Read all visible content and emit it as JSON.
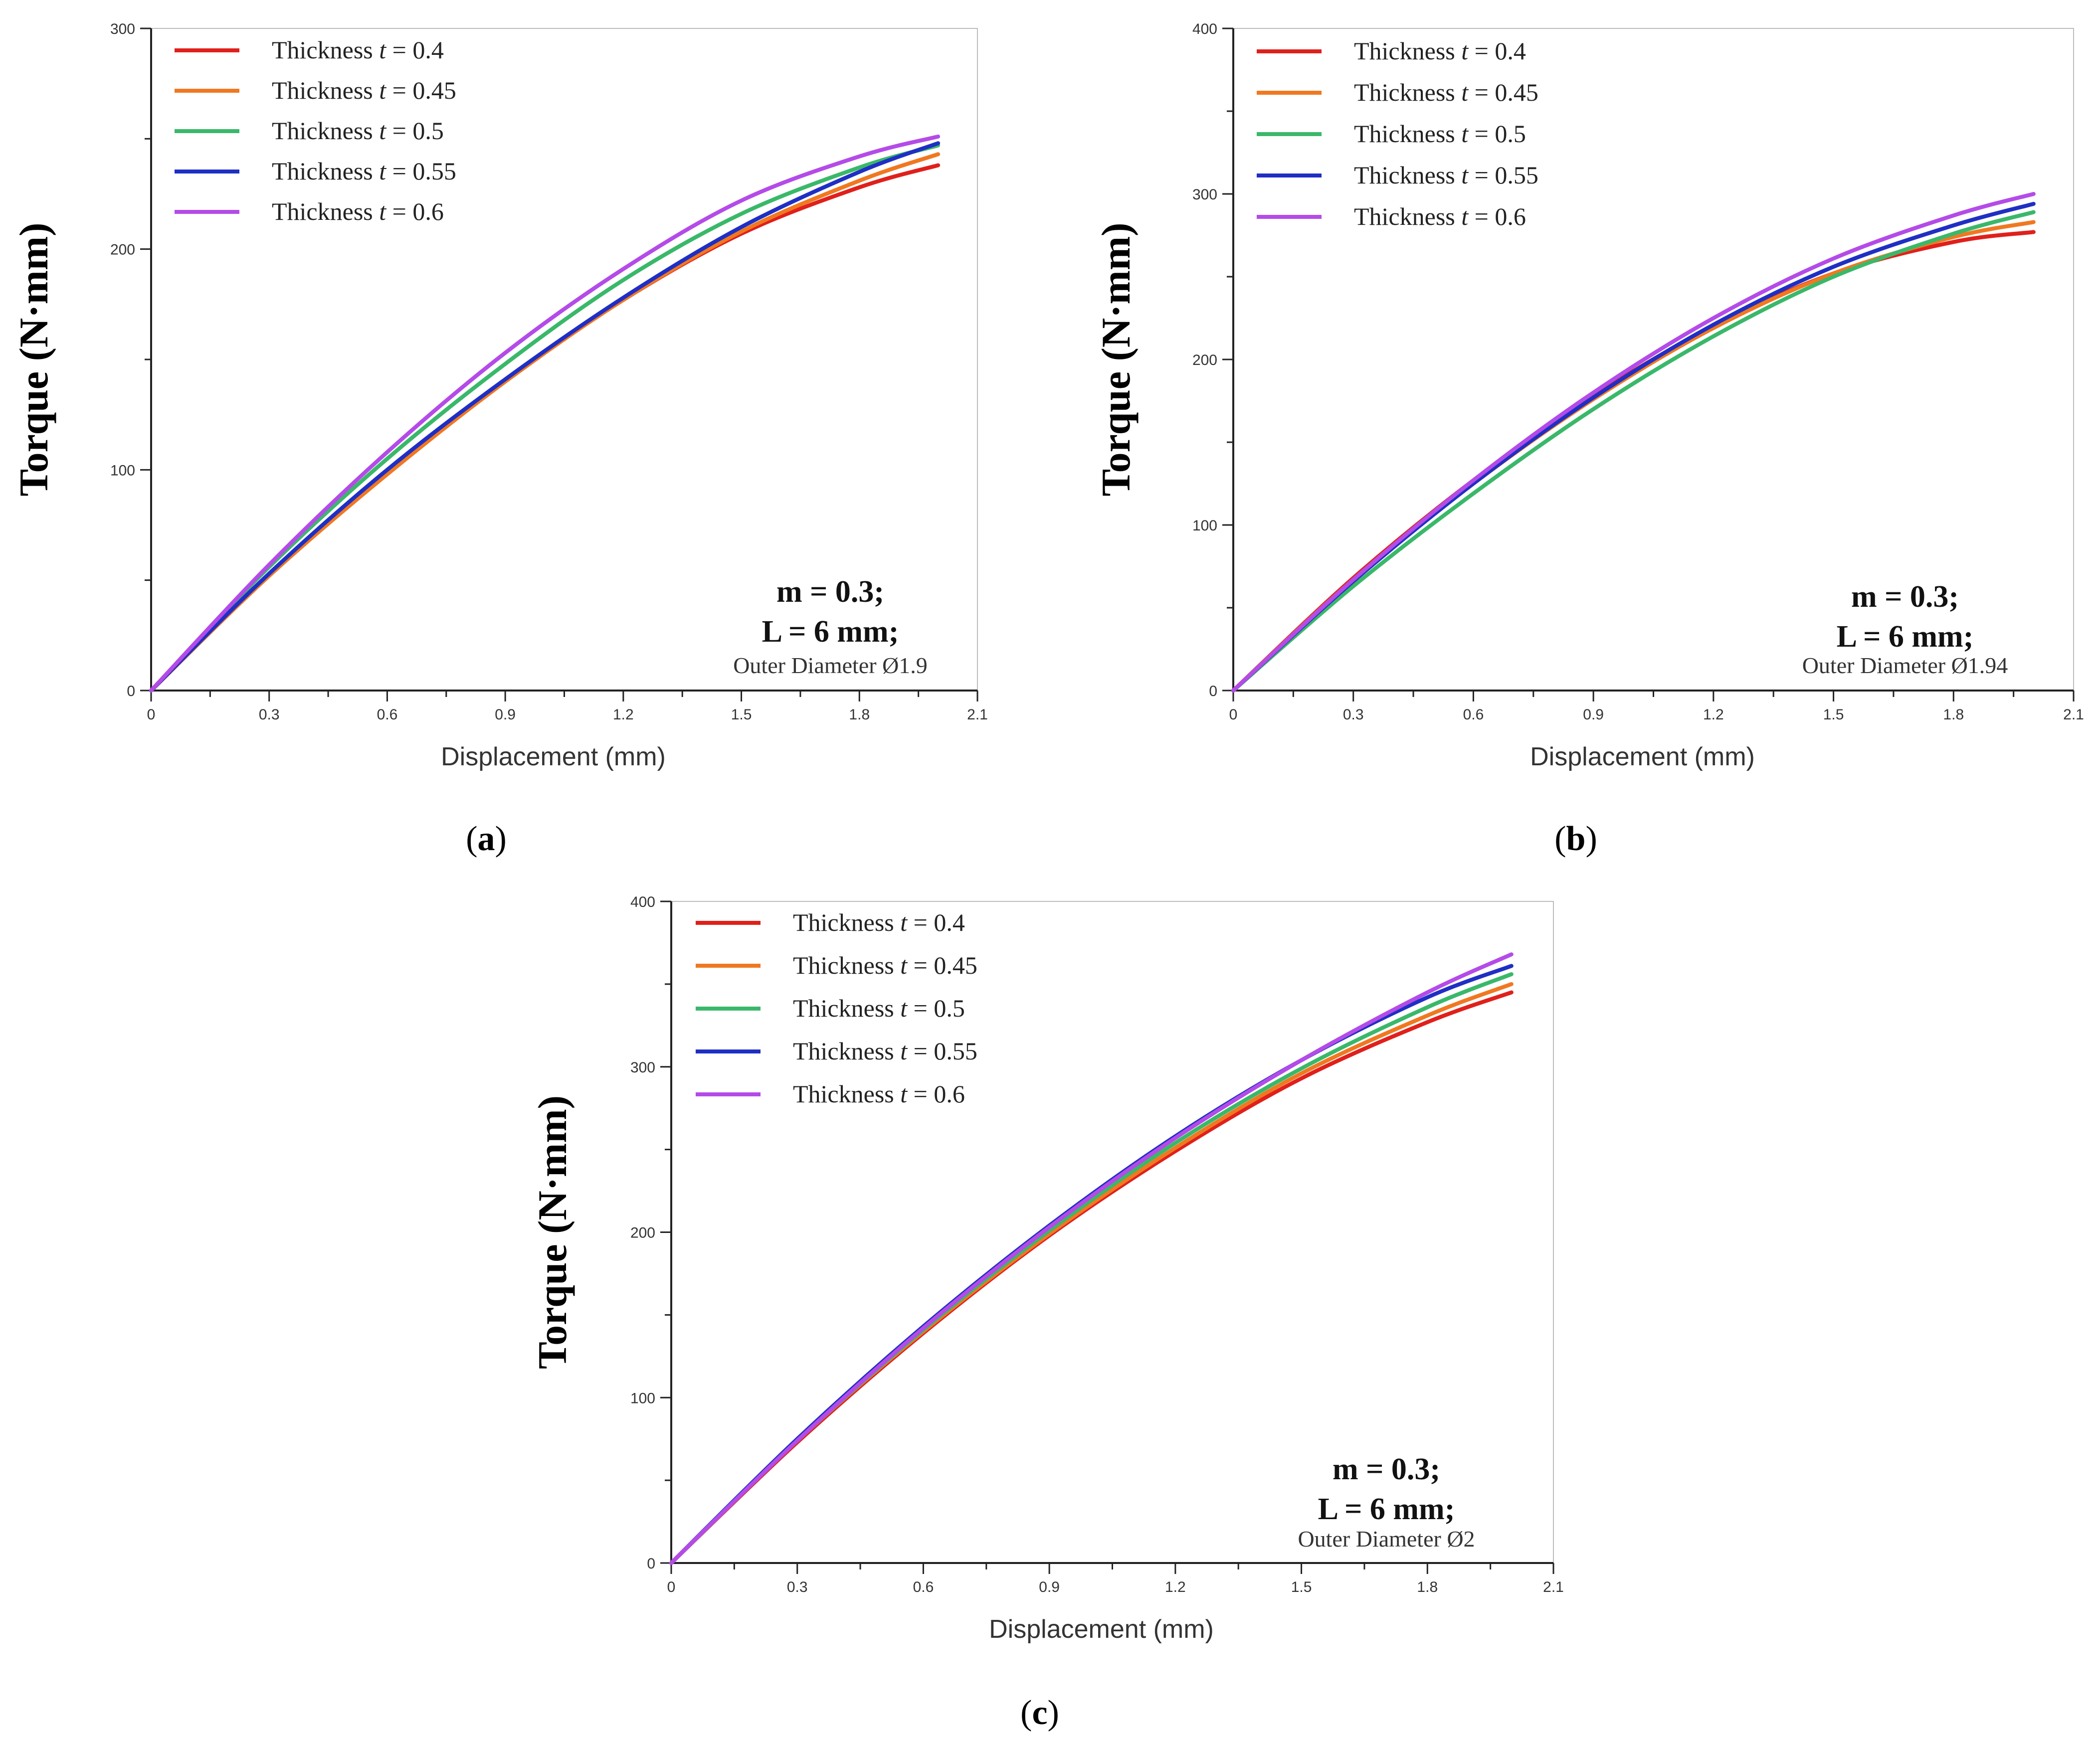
{
  "chart_data": [
    {
      "type": "line",
      "panel_label": "a",
      "xlabel": "Displacement (mm)",
      "ylabel": "Torque (N·mm)",
      "xlim": [
        0,
        2.1
      ],
      "ylim": [
        0,
        300
      ],
      "xticks": [
        "0",
        "0.3",
        "0.6",
        "0.9",
        "1.2",
        "1.5",
        "1.8",
        "2.1"
      ],
      "yticks": [
        "0",
        "100",
        "200",
        "300"
      ],
      "legend_position": "top-left",
      "annotations": [
        "m = 0.3;",
        "L = 6 mm;",
        "Outer Diameter Ø1.9"
      ],
      "series": [
        {
          "name": "Thickness t = 0.4",
          "legend_prefix": "Thickness ",
          "legend_var": "t",
          "legend_suffix": " = 0.4",
          "color": "#e0201b",
          "x": [
            0,
            0.3,
            0.6,
            0.9,
            1.2,
            1.5,
            1.8,
            2.0
          ],
          "y": [
            0,
            52,
            98,
            140,
            177,
            207,
            228,
            238
          ]
        },
        {
          "name": "Thickness t = 0.45",
          "legend_prefix": "Thickness ",
          "legend_var": "t",
          "legend_suffix": " = 0.45",
          "color": "#f07820",
          "x": [
            0,
            0.3,
            0.6,
            0.9,
            1.2,
            1.5,
            1.8,
            2.0
          ],
          "y": [
            0,
            52,
            98,
            140,
            177,
            208,
            231,
            243
          ]
        },
        {
          "name": "Thickness t = 0.5",
          "legend_prefix": "Thickness ",
          "legend_var": "t",
          "legend_suffix": " = 0.5",
          "color": "#3ab86a",
          "x": [
            0,
            0.3,
            0.6,
            0.9,
            1.2,
            1.5,
            1.8,
            2.0
          ],
          "y": [
            0,
            56,
            105,
            148,
            186,
            216,
            237,
            247
          ]
        },
        {
          "name": "Thickness t = 0.55",
          "legend_prefix": "Thickness ",
          "legend_var": "t",
          "legend_suffix": " = 0.55",
          "color": "#1f2fc4",
          "x": [
            0,
            0.3,
            0.6,
            0.9,
            1.2,
            1.5,
            1.8,
            2.0
          ],
          "y": [
            0,
            53,
            100,
            141,
            178,
            210,
            235,
            248
          ]
        },
        {
          "name": "Thickness t = 0.6",
          "legend_prefix": "Thickness ",
          "legend_var": "t",
          "legend_suffix": " = 0.6",
          "color": "#b44be8",
          "x": [
            0,
            0.3,
            0.6,
            0.9,
            1.2,
            1.5,
            1.8,
            2.0
          ],
          "y": [
            0,
            57,
            108,
            153,
            191,
            222,
            242,
            251
          ]
        }
      ]
    },
    {
      "type": "line",
      "panel_label": "b",
      "xlabel": "Displacement (mm)",
      "ylabel": "Torque (N·mm)",
      "xlim": [
        0,
        2.1
      ],
      "ylim": [
        0,
        400
      ],
      "xticks": [
        "0",
        "0.3",
        "0.6",
        "0.9",
        "1.2",
        "1.5",
        "1.8",
        "2.1"
      ],
      "yticks": [
        "0",
        "100",
        "200",
        "300",
        "400"
      ],
      "legend_position": "top-left",
      "annotations": [
        "m = 0.3;",
        "L = 6 mm;",
        "Outer Diameter Ø1.94"
      ],
      "series": [
        {
          "name": "Thickness t = 0.4",
          "legend_prefix": "Thickness ",
          "legend_var": "t",
          "legend_suffix": " = 0.4",
          "color": "#e0201b",
          "x": [
            0,
            0.3,
            0.6,
            0.9,
            1.2,
            1.5,
            1.8,
            2.0
          ],
          "y": [
            0,
            68,
            127,
            178,
            220,
            252,
            271,
            277
          ]
        },
        {
          "name": "Thickness t = 0.45",
          "legend_prefix": "Thickness ",
          "legend_var": "t",
          "legend_suffix": " = 0.45",
          "color": "#f07820",
          "x": [
            0,
            0.3,
            0.6,
            0.9,
            1.2,
            1.5,
            1.8,
            2.0
          ],
          "y": [
            0,
            67,
            125,
            176,
            219,
            252,
            274,
            283
          ]
        },
        {
          "name": "Thickness t = 0.5",
          "legend_prefix": "Thickness ",
          "legend_var": "t",
          "legend_suffix": " = 0.5",
          "color": "#3ab86a",
          "x": [
            0,
            0.3,
            0.6,
            0.9,
            1.2,
            1.5,
            1.8,
            2.0
          ],
          "y": [
            0,
            63,
            119,
            170,
            214,
            250,
            276,
            289
          ]
        },
        {
          "name": "Thickness t = 0.55",
          "legend_prefix": "Thickness ",
          "legend_var": "t",
          "legend_suffix": " = 0.55",
          "color": "#1f2fc4",
          "x": [
            0,
            0.3,
            0.6,
            0.9,
            1.2,
            1.5,
            1.8,
            2.0
          ],
          "y": [
            0,
            66,
            125,
            177,
            221,
            256,
            281,
            294
          ]
        },
        {
          "name": "Thickness t = 0.6",
          "legend_prefix": "Thickness ",
          "legend_var": "t",
          "legend_suffix": " = 0.6",
          "color": "#b44be8",
          "x": [
            0,
            0.3,
            0.6,
            0.9,
            1.2,
            1.5,
            1.8,
            2.0
          ],
          "y": [
            0,
            67,
            127,
            180,
            225,
            261,
            287,
            300
          ]
        }
      ]
    },
    {
      "type": "line",
      "panel_label": "c",
      "xlabel": "Displacement (mm)",
      "ylabel": "Torque (N·mm)",
      "xlim": [
        0,
        2.1
      ],
      "ylim": [
        0,
        400
      ],
      "xticks": [
        "0",
        "0.3",
        "0.6",
        "0.9",
        "1.2",
        "1.5",
        "1.8",
        "2.1"
      ],
      "yticks": [
        "0",
        "100",
        "200",
        "300",
        "400"
      ],
      "legend_position": "top-left",
      "annotations": [
        "m = 0.3;",
        "L = 6 mm;",
        "Outer Diameter Ø2"
      ],
      "series": [
        {
          "name": "Thickness t = 0.4",
          "legend_prefix": "Thickness ",
          "legend_var": "t",
          "legend_suffix": " = 0.4",
          "color": "#e0201b",
          "x": [
            0,
            0.3,
            0.6,
            0.9,
            1.2,
            1.5,
            1.8,
            2.0
          ],
          "y": [
            0,
            73,
            139,
            198,
            249,
            293,
            327,
            345
          ]
        },
        {
          "name": "Thickness t = 0.45",
          "legend_prefix": "Thickness ",
          "legend_var": "t",
          "legend_suffix": " = 0.45",
          "color": "#f07820",
          "x": [
            0,
            0.3,
            0.6,
            0.9,
            1.2,
            1.5,
            1.8,
            2.0
          ],
          "y": [
            0,
            74,
            140,
            199,
            251,
            296,
            331,
            350
          ]
        },
        {
          "name": "Thickness t = 0.5",
          "legend_prefix": "Thickness ",
          "legend_var": "t",
          "legend_suffix": " = 0.5",
          "color": "#3ab86a",
          "x": [
            0,
            0.3,
            0.6,
            0.9,
            1.2,
            1.5,
            1.8,
            2.0
          ],
          "y": [
            0,
            74,
            141,
            201,
            254,
            299,
            336,
            356
          ]
        },
        {
          "name": "Thickness t = 0.55",
          "legend_prefix": "Thickness ",
          "legend_var": "t",
          "legend_suffix": " = 0.55",
          "color": "#1f2fc4",
          "x": [
            0,
            0.3,
            0.6,
            0.9,
            1.2,
            1.5,
            1.8,
            2.0
          ],
          "y": [
            0,
            75,
            143,
            204,
            258,
            304,
            342,
            361
          ]
        },
        {
          "name": "Thickness t = 0.6",
          "legend_prefix": "Thickness ",
          "legend_var": "t",
          "legend_suffix": " = 0.6",
          "color": "#b44be8",
          "x": [
            0,
            0.3,
            0.6,
            0.9,
            1.2,
            1.5,
            1.8,
            2.0
          ],
          "y": [
            0,
            74,
            142,
            203,
            257,
            304,
            345,
            368
          ]
        }
      ]
    }
  ]
}
